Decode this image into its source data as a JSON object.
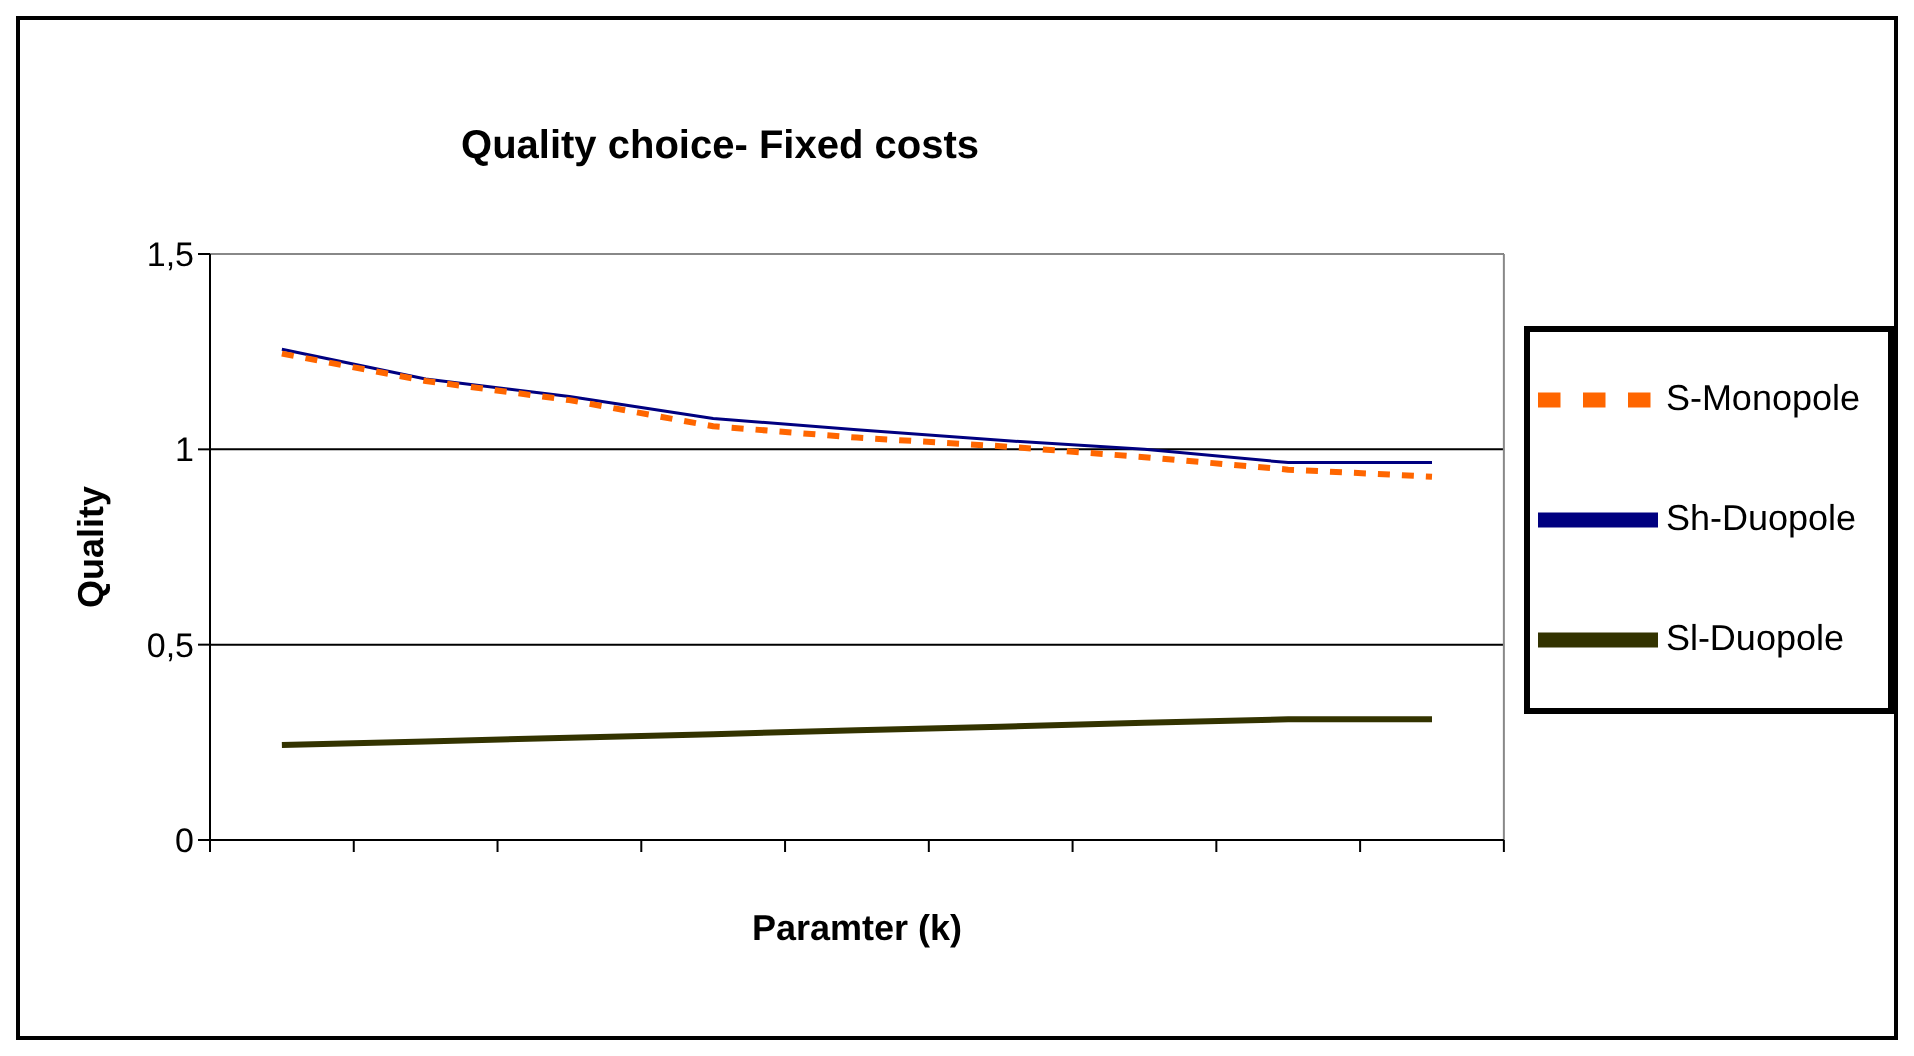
{
  "chart_data": {
    "type": "line",
    "title": "Quality choice- Fixed costs",
    "xlabel": "Paramter (k)",
    "ylabel": "Quality",
    "categories": [
      null,
      null,
      null,
      null,
      null,
      null,
      null,
      null,
      null
    ],
    "series": [
      {
        "name": "Sh-Duopole",
        "color": "#000080",
        "values": [
          1.256,
          1.18,
          1.135,
          1.079,
          1.05,
          1.023,
          1.0,
          0.966,
          0.966
        ]
      },
      {
        "name": "Sl-Duopole",
        "color": "#333300",
        "values": [
          0.243,
          0.252,
          0.262,
          0.271,
          0.281,
          0.29,
          0.3,
          0.309,
          0.309
        ]
      },
      {
        "name": "S-Monopole",
        "color": "#ff6600",
        "line_style": "dashed",
        "values": [
          1.245,
          1.175,
          1.126,
          1.059,
          1.03,
          1.008,
          0.98,
          0.948,
          0.93
        ]
      }
    ],
    "ylim": [
      0,
      1.5
    ],
    "yticks": [
      0,
      {
        "value": 0.5,
        "label": "0,5"
      },
      1,
      {
        "value": 1.5,
        "label": "1,5"
      }
    ],
    "grid": "y",
    "legend": "right",
    "marker": "none"
  }
}
